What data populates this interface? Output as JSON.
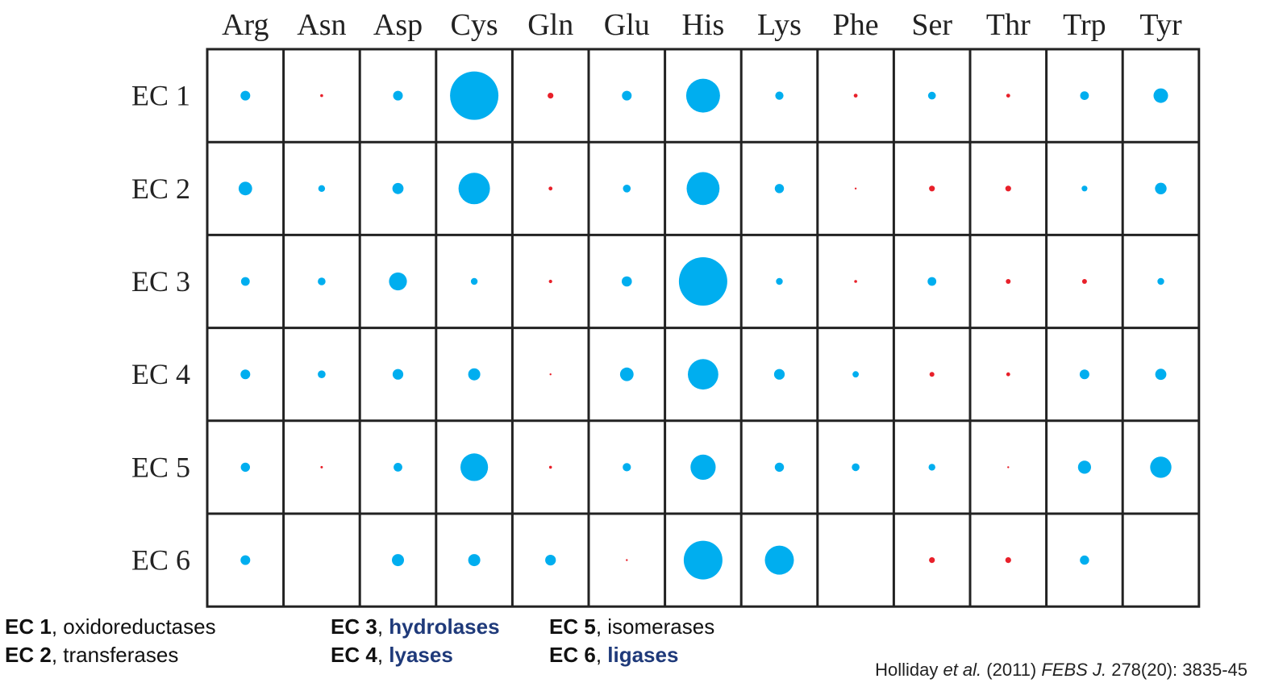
{
  "chart_data": {
    "type": "bubble-matrix",
    "columns": [
      "Arg",
      "Asn",
      "Asp",
      "Cys",
      "Gln",
      "Glu",
      "His",
      "Lys",
      "Phe",
      "Ser",
      "Thr",
      "Trp",
      "Tyr"
    ],
    "rows": [
      "EC 1",
      "EC 2",
      "EC 3",
      "EC 4",
      "EC 5",
      "EC 6"
    ],
    "colors": {
      "over": "#00aeef",
      "under": "#e8202a"
    },
    "values": [
      [
        0.2,
        -0.06,
        0.2,
        1.0,
        -0.12,
        0.2,
        0.7,
        0.17,
        -0.08,
        0.16,
        -0.08,
        0.18,
        0.3
      ],
      [
        0.28,
        0.14,
        0.23,
        0.65,
        -0.08,
        0.16,
        0.68,
        0.19,
        -0.04,
        -0.12,
        -0.12,
        0.12,
        0.24
      ],
      [
        0.18,
        0.16,
        0.37,
        0.14,
        -0.07,
        0.21,
        1.0,
        0.14,
        -0.06,
        0.18,
        -0.1,
        -0.1,
        0.14
      ],
      [
        0.2,
        0.16,
        0.22,
        0.25,
        -0.04,
        0.28,
        0.63,
        0.22,
        0.13,
        -0.1,
        -0.08,
        0.2,
        0.23
      ],
      [
        0.19,
        -0.05,
        0.18,
        0.57,
        -0.06,
        0.17,
        0.52,
        0.19,
        0.16,
        0.14,
        -0.04,
        0.27,
        0.44
      ],
      [
        0.2,
        null,
        0.25,
        0.25,
        0.22,
        -0.04,
        0.8,
        0.6,
        null,
        -0.12,
        -0.12,
        0.19,
        null
      ]
    ]
  },
  "legend": {
    "col1": [
      {
        "code": "EC 1",
        "name": "oxidoreductases",
        "highlight": false
      },
      {
        "code": "EC 2",
        "name": "transferases",
        "highlight": false
      }
    ],
    "col2": [
      {
        "code": "EC 3",
        "name": "hydrolases",
        "highlight": true
      },
      {
        "code": "EC 4",
        "name": "lyases",
        "highlight": true
      }
    ],
    "col3": [
      {
        "code": "EC 5",
        "name": "isomerases",
        "highlight": false
      },
      {
        "code": "EC 6",
        "name": "ligases",
        "highlight": true
      }
    ]
  },
  "citation": {
    "author": "Holliday",
    "etal": "et al.",
    "year": "(2011)",
    "journal": "FEBS J.",
    "ref": "278(20): 3835-45"
  }
}
